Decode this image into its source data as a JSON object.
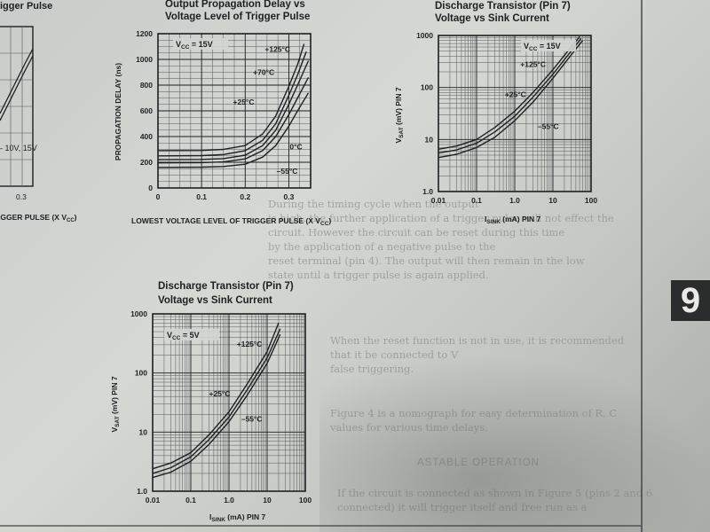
{
  "page": {
    "tab_label": "9",
    "fragments": {
      "left_title": "igger Pulse",
      "left_axis": "IGGER PULSE (X V",
      "left_axis_sub": "CC",
      "left_axis_close": ")",
      "left_tick": "0.3",
      "left_legend": "– 10V, 15V"
    },
    "background_text": [
      "During the timing cycle when the output",
      "is high, the further application of a trigger pulse will not effect the",
      "circuit. However the circuit can be reset during this time",
      "by the application of a negative pulse to the",
      "reset terminal (pin 4). The output will then remain in the low",
      "state until a trigger pulse is again applied.",
      "When the reset function is not in use, it is recommended",
      "that it be connected to V",
      "false triggering.",
      "Figure 4 is a nomograph for easy determination of R, C",
      "values for various time delays.",
      "ASTABLE OPERATION",
      "If the circuit is connected as shown in Figure 5 (pins 2 and 6",
      "connected) it will trigger itself and free run as a"
    ],
    "colors": {
      "ink": "#1e1f22",
      "paper": "#d3d5d1",
      "grid": "#55585a"
    }
  },
  "chart_data": [
    {
      "type": "line",
      "title": "Output Propagation Delay vs\nVoltage Level of Trigger Pulse",
      "title_lines": [
        "Output Propagation Delay vs",
        "Voltage Level of Trigger Pulse"
      ],
      "xlabel": "LOWEST VOLTAGE LEVEL OF TRIGGER PULSE (X V",
      "xlabel_sub": "CC",
      "xlabel_close": ")",
      "ylabel": "PROPAGATION DELAY (ns)",
      "xlim": [
        0,
        0.35
      ],
      "ylim": [
        0,
        1200
      ],
      "xticks": [
        0,
        0.1,
        0.2,
        0.3
      ],
      "xtick_labels": [
        "0",
        "0.1",
        "0.2",
        "0.3"
      ],
      "yticks": [
        0,
        200,
        400,
        600,
        800,
        1000,
        1200
      ],
      "ytick_labels": [
        "0",
        "200",
        "400",
        "600",
        "800",
        "1000",
        "1200"
      ],
      "xscale": "linear",
      "yscale": "linear",
      "grid": true,
      "condition": {
        "main": "V",
        "sub": "CC",
        "rest": " = 15V"
      },
      "series": [
        {
          "name": "+125°C",
          "points": [
            [
              0,
              290
            ],
            [
              0.1,
              292
            ],
            [
              0.15,
              300
            ],
            [
              0.2,
              330
            ],
            [
              0.24,
              420
            ],
            [
              0.27,
              560
            ],
            [
              0.3,
              790
            ],
            [
              0.32,
              960
            ],
            [
              0.335,
              1120
            ]
          ]
        },
        {
          "name": "+70°C",
          "points": [
            [
              0,
              250
            ],
            [
              0.1,
              252
            ],
            [
              0.15,
              260
            ],
            [
              0.2,
              290
            ],
            [
              0.24,
              370
            ],
            [
              0.27,
              500
            ],
            [
              0.3,
              720
            ],
            [
              0.32,
              880
            ],
            [
              0.34,
              1060
            ]
          ]
        },
        {
          "name": "+25°C",
          "points": [
            [
              0,
              220
            ],
            [
              0.1,
              222
            ],
            [
              0.15,
              228
            ],
            [
              0.2,
              255
            ],
            [
              0.24,
              330
            ],
            [
              0.27,
              450
            ],
            [
              0.3,
              650
            ],
            [
              0.32,
              800
            ],
            [
              0.345,
              990
            ]
          ]
        },
        {
          "name": "0°C",
          "points": [
            [
              0,
              195
            ],
            [
              0.1,
              197
            ],
            [
              0.15,
              203
            ],
            [
              0.2,
              226
            ],
            [
              0.24,
              290
            ],
            [
              0.27,
              400
            ],
            [
              0.3,
              570
            ],
            [
              0.32,
              700
            ],
            [
              0.345,
              860
            ]
          ]
        },
        {
          "name": "–55°C",
          "points": [
            [
              0,
              160
            ],
            [
              0.1,
              162
            ],
            [
              0.15,
              167
            ],
            [
              0.2,
              185
            ],
            [
              0.24,
              240
            ],
            [
              0.27,
              330
            ],
            [
              0.3,
              480
            ],
            [
              0.32,
              600
            ],
            [
              0.345,
              740
            ]
          ]
        }
      ],
      "labels": [
        {
          "text": "+125°C",
          "x": 0.245,
          "y": 1060
        },
        {
          "text": "+70°C",
          "x": 0.218,
          "y": 880
        },
        {
          "text": "+25°C",
          "x": 0.172,
          "y": 650
        },
        {
          "text": "0°C",
          "x": 0.302,
          "y": 300
        },
        {
          "text": "–55°C",
          "x": 0.272,
          "y": 110
        }
      ]
    },
    {
      "type": "line",
      "title": "Discharge Transistor (Pin 7)\nVoltage vs Sink Current",
      "title_lines": [
        "Discharge Transistor (Pin 7)",
        "Voltage vs Sink Current"
      ],
      "xlabel": "I",
      "xlabel_sub": "SINK",
      "xlabel_close": " (mA) PIN 7",
      "ylabel": "V",
      "ylabel_sub": "SAT",
      "ylabel_close": " (mV) PIN 7",
      "xscale": "log",
      "yscale": "log",
      "xlim": [
        0.01,
        100
      ],
      "ylim": [
        1,
        1000
      ],
      "xticks": [
        0.01,
        0.1,
        1,
        10,
        100
      ],
      "xtick_labels": [
        "0.01",
        "0.1",
        "1.0",
        "10",
        "100"
      ],
      "yticks": [
        1,
        10,
        100,
        1000
      ],
      "ytick_labels": [
        "1.0",
        "10",
        "100",
        "1000"
      ],
      "grid": true,
      "condition": {
        "main": "V",
        "sub": "CC",
        "rest": " = 15V"
      },
      "series": [
        {
          "name": "+125°C",
          "points": [
            [
              0.01,
              6.5
            ],
            [
              0.03,
              7.5
            ],
            [
              0.1,
              10
            ],
            [
              0.3,
              17
            ],
            [
              1,
              35
            ],
            [
              3,
              80
            ],
            [
              10,
              220
            ],
            [
              30,
              600
            ],
            [
              50,
              950
            ]
          ]
        },
        {
          "name": "+25°C",
          "points": [
            [
              0.01,
              5.5
            ],
            [
              0.03,
              6.3
            ],
            [
              0.1,
              8.5
            ],
            [
              0.3,
              14
            ],
            [
              1,
              28
            ],
            [
              3,
              65
            ],
            [
              10,
              180
            ],
            [
              30,
              500
            ],
            [
              55,
              880
            ]
          ]
        },
        {
          "name": "–55°C",
          "points": [
            [
              0.01,
              4.5
            ],
            [
              0.03,
              5.2
            ],
            [
              0.1,
              7
            ],
            [
              0.3,
              11
            ],
            [
              1,
              23
            ],
            [
              3,
              52
            ],
            [
              10,
              150
            ],
            [
              30,
              420
            ],
            [
              60,
              800
            ]
          ]
        }
      ],
      "labels": [
        {
          "text": "+125°C",
          "x": 1.4,
          "y": 250
        },
        {
          "text": "+25°C",
          "x": 0.55,
          "y": 65
        },
        {
          "text": "–55°C",
          "x": 4.0,
          "y": 16
        }
      ]
    },
    {
      "type": "line",
      "title": "Discharge Transistor (Pin 7)\nVoltage vs Sink Current",
      "title_lines": [
        "Discharge Transistor (Pin 7)",
        "Voltage vs Sink Current"
      ],
      "xlabel": "I",
      "xlabel_sub": "SINK",
      "xlabel_close": " (mA) PIN 7",
      "ylabel": "V",
      "ylabel_sub": "SAT",
      "ylabel_close": " (mV) PIN 7",
      "xscale": "log",
      "yscale": "log",
      "xlim": [
        0.01,
        100
      ],
      "ylim": [
        1,
        1000
      ],
      "xticks": [
        0.01,
        0.1,
        1,
        10,
        100
      ],
      "xtick_labels": [
        "0.01",
        "0.1",
        "1.0",
        "10",
        "100"
      ],
      "yticks": [
        1,
        10,
        100,
        1000
      ],
      "ytick_labels": [
        "1.0",
        "10",
        "100",
        "1000"
      ],
      "grid": true,
      "condition": {
        "main": "V",
        "sub": "CC",
        "rest": " = 5V"
      },
      "series": [
        {
          "name": "+125°C",
          "points": [
            [
              0.01,
              2.4
            ],
            [
              0.03,
              3
            ],
            [
              0.1,
              4.5
            ],
            [
              0.3,
              9
            ],
            [
              1,
              22
            ],
            [
              3,
              65
            ],
            [
              10,
              230
            ],
            [
              20,
              700
            ]
          ]
        },
        {
          "name": "+25°C",
          "points": [
            [
              0.01,
              2.0
            ],
            [
              0.03,
              2.5
            ],
            [
              0.1,
              3.8
            ],
            [
              0.3,
              7.5
            ],
            [
              1,
              18
            ],
            [
              3,
              52
            ],
            [
              10,
              180
            ],
            [
              22,
              560
            ]
          ]
        },
        {
          "name": "–55°C",
          "points": [
            [
              0.01,
              1.7
            ],
            [
              0.03,
              2.1
            ],
            [
              0.1,
              3.2
            ],
            [
              0.3,
              6.2
            ],
            [
              1,
              15
            ],
            [
              3,
              42
            ],
            [
              10,
              145
            ],
            [
              22,
              450
            ]
          ]
        }
      ],
      "labels": [
        {
          "text": "+125°C",
          "x": 1.6,
          "y": 280
        },
        {
          "text": "+25°C",
          "x": 0.3,
          "y": 40
        },
        {
          "text": "–55°C",
          "x": 2.1,
          "y": 15
        }
      ]
    }
  ]
}
